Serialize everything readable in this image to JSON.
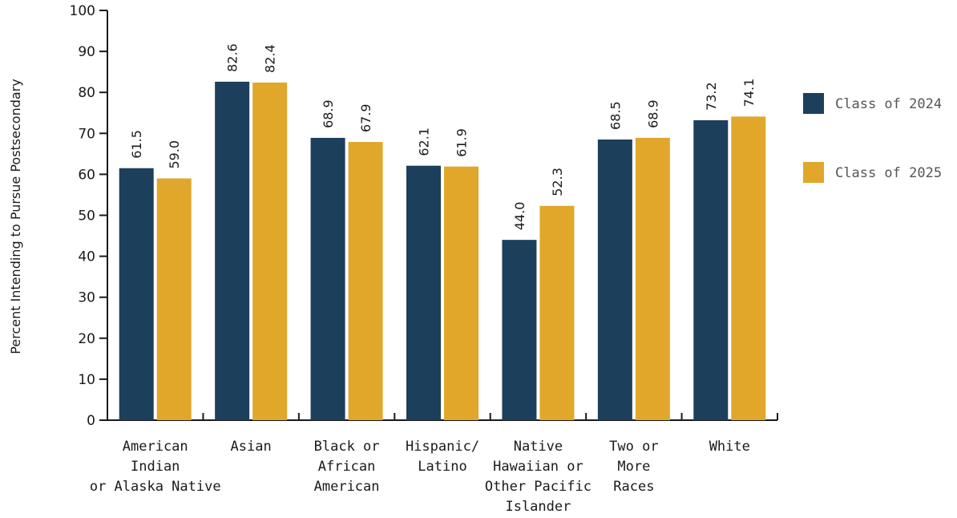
{
  "chart_data": {
    "type": "bar",
    "ylabel": "Percent Intending to Pursue Postsecondary",
    "xlabel": "",
    "ylim": [
      0,
      100
    ],
    "yticks": [
      0,
      10,
      20,
      30,
      40,
      50,
      60,
      70,
      80,
      90,
      100
    ],
    "grid": false,
    "legend_position": "right",
    "categories": [
      [
        "American",
        "Indian",
        "or Alaska Native"
      ],
      [
        "Asian"
      ],
      [
        "Black or",
        "African",
        "American"
      ],
      [
        "Hispanic/",
        "Latino"
      ],
      [
        "Native",
        "Hawaiian or",
        "Other Pacific",
        "Islander"
      ],
      [
        "Two or",
        "More",
        "Races"
      ],
      [
        "White"
      ]
    ],
    "series": [
      {
        "name": "Class of 2024",
        "color": "#1c3f5c",
        "values": [
          61.5,
          82.6,
          68.9,
          62.1,
          44.0,
          68.5,
          73.2
        ]
      },
      {
        "name": "Class of 2025",
        "color": "#e0a72b",
        "values": [
          59.0,
          82.4,
          67.9,
          61.9,
          52.3,
          68.9,
          74.1
        ]
      }
    ]
  }
}
